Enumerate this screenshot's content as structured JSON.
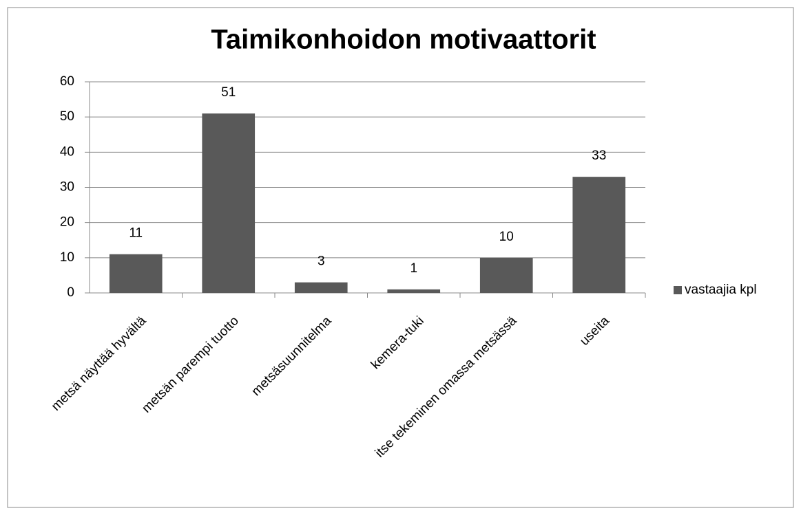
{
  "chart_data": {
    "type": "bar",
    "title": "Taimikonhoidon motivaattorit",
    "categories": [
      "metsä näyttää hyvältä",
      "metsän parempi tuotto",
      "metsäsuunnitelma",
      "kemera-tuki",
      "itse tekeminen omassa metsässä",
      "useita"
    ],
    "series": [
      {
        "name": "vastaajia kpl",
        "color": "#595959",
        "values": [
          11,
          51,
          3,
          1,
          10,
          33
        ]
      }
    ],
    "ylim": [
      0,
      60
    ],
    "yticks": [
      0,
      10,
      20,
      30,
      40,
      50,
      60
    ],
    "grid": true,
    "legend": "right",
    "data_labels": true
  }
}
